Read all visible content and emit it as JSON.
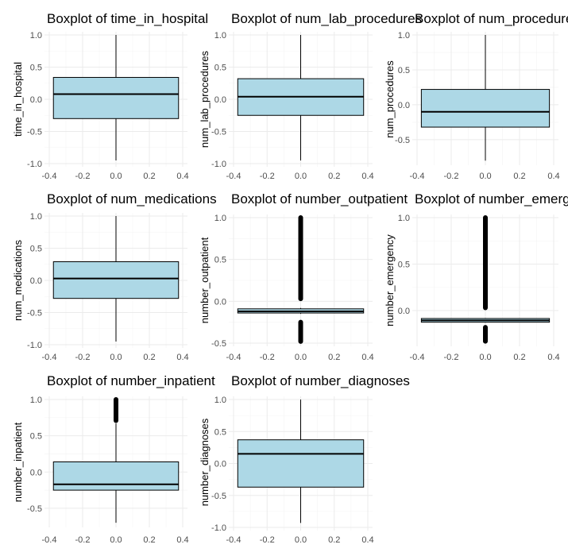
{
  "colors": {
    "box_fill": "#add8e6",
    "line": "#000000",
    "grid": "#ebebeb",
    "tick_text": "#4d4d4d"
  },
  "chart_data": [
    {
      "type": "box",
      "title": "Boxplot of time_in_hospital",
      "ylabel": "time_in_hospital",
      "xlim": [
        -0.4,
        0.4
      ],
      "ylim": [
        -1.0,
        1.0
      ],
      "xticks": [
        "-0.4",
        "-0.2",
        "0.0",
        "0.2",
        "0.4"
      ],
      "yticks": [
        "-1.0",
        "-0.5",
        "0.0",
        "0.5",
        "1.0"
      ],
      "box": {
        "whisker_low": -0.95,
        "q1": -0.3,
        "median": 0.08,
        "q3": 0.34,
        "whisker_high": 1.0
      },
      "outliers": []
    },
    {
      "type": "box",
      "title": "Boxplot of num_lab_procedures",
      "ylabel": "num_lab_procedures",
      "xlim": [
        -0.4,
        0.4
      ],
      "ylim": [
        -1.0,
        1.0
      ],
      "xticks": [
        "-0.4",
        "-0.2",
        "0.0",
        "0.2",
        "0.4"
      ],
      "yticks": [
        "-1.0",
        "-0.5",
        "0.0",
        "0.5",
        "1.0"
      ],
      "box": {
        "whisker_low": -0.95,
        "q1": -0.25,
        "median": 0.04,
        "q3": 0.32,
        "whisker_high": 1.0
      },
      "outliers": []
    },
    {
      "type": "box",
      "title": "Boxplot of num_procedures",
      "ylabel": "num_procedures",
      "xlim": [
        -0.4,
        0.4
      ],
      "ylim": [
        -0.82,
        1.0
      ],
      "xticks": [
        "-0.4",
        "-0.2",
        "0.0",
        "0.2",
        "0.4"
      ],
      "yticks": [
        "-0.5",
        "0.0",
        "0.5",
        "1.0"
      ],
      "box": {
        "whisker_low": -0.8,
        "q1": -0.32,
        "median": -0.1,
        "q3": 0.22,
        "whisker_high": 1.0
      },
      "outliers": []
    },
    {
      "type": "box",
      "title": "Boxplot of num_medications",
      "ylabel": "num_medications",
      "xlim": [
        -0.4,
        0.4
      ],
      "ylim": [
        -1.0,
        1.0
      ],
      "xticks": [
        "-0.4",
        "-0.2",
        "0.0",
        "0.2",
        "0.4"
      ],
      "yticks": [
        "-1.0",
        "-0.5",
        "0.0",
        "0.5",
        "1.0"
      ],
      "box": {
        "whisker_low": -0.95,
        "q1": -0.28,
        "median": 0.03,
        "q3": 0.29,
        "whisker_high": 1.0
      },
      "outliers": []
    },
    {
      "type": "box",
      "title": "Boxplot of number_outpatient",
      "ylabel": "number_outpatient",
      "xlim": [
        -0.4,
        0.4
      ],
      "ylim": [
        -0.5,
        1.0
      ],
      "xticks": [
        "-0.4",
        "-0.2",
        "0.0",
        "0.2",
        "0.4"
      ],
      "yticks": [
        "-0.5",
        "0.0",
        "0.5",
        "1.0"
      ],
      "box": {
        "whisker_low": -0.15,
        "q1": -0.14,
        "median": -0.12,
        "q3": -0.09,
        "whisker_high": -0.08
      },
      "outliers": [
        [
          0.03,
          1.0
        ],
        [
          -0.48,
          -0.25
        ]
      ]
    },
    {
      "type": "box",
      "title": "Boxplot of number_emergency",
      "ylabel": "number_emergency",
      "xlim": [
        -0.4,
        0.4
      ],
      "ylim": [
        -0.35,
        1.0
      ],
      "xticks": [
        "-0.4",
        "-0.2",
        "0.0",
        "0.2",
        "0.4"
      ],
      "yticks": [
        "0.0",
        "0.5",
        "1.0"
      ],
      "box": {
        "whisker_low": -0.13,
        "q1": -0.125,
        "median": -0.105,
        "q3": -0.085,
        "whisker_high": -0.08
      },
      "outliers": [
        [
          0.03,
          1.0
        ],
        [
          -0.33,
          -0.18
        ]
      ]
    },
    {
      "type": "box",
      "title": "Boxplot of number_inpatient",
      "ylabel": "number_inpatient",
      "xlim": [
        -0.4,
        0.4
      ],
      "ylim": [
        -0.72,
        1.0
      ],
      "xticks": [
        "-0.4",
        "-0.2",
        "0.0",
        "0.2",
        "0.4"
      ],
      "yticks": [
        "-0.5",
        "0.0",
        "0.5",
        "1.0"
      ],
      "box": {
        "whisker_low": -0.7,
        "q1": -0.25,
        "median": -0.17,
        "q3": 0.14,
        "whisker_high": 0.67
      },
      "outliers": [
        [
          0.71,
          1.0
        ]
      ]
    },
    {
      "type": "box",
      "title": "Boxplot of number_diagnoses",
      "ylabel": "number_diagnoses",
      "xlim": [
        -0.4,
        0.4
      ],
      "ylim": [
        -1.0,
        1.0
      ],
      "xticks": [
        "-0.4",
        "-0.2",
        "0.0",
        "0.2",
        "0.4"
      ],
      "yticks": [
        "-1.0",
        "-0.5",
        "0.0",
        "0.5",
        "1.0"
      ],
      "box": {
        "whisker_low": -0.93,
        "q1": -0.37,
        "median": 0.15,
        "q3": 0.37,
        "whisker_high": 1.0
      },
      "outliers": []
    }
  ]
}
